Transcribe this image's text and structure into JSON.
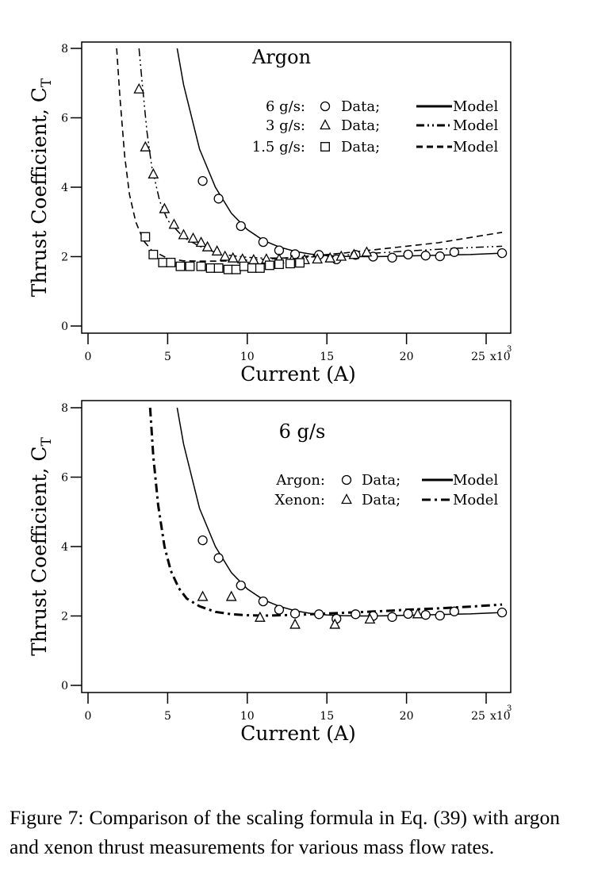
{
  "chart_data": [
    {
      "type": "scatter",
      "title": "Argon",
      "xlabel": "Current (A)",
      "ylabel": "Thrust Coefficient, C",
      "ylabel_sub": "T",
      "x_multiplier": "x10",
      "x_multiplier_exp": "3",
      "xlim": [
        0,
        26
      ],
      "ylim": [
        0,
        8
      ],
      "xticks": [
        0,
        5,
        10,
        15,
        20,
        25
      ],
      "xtick_labels": [
        "0",
        "5",
        "10",
        "15",
        "20",
        "25"
      ],
      "yticks": [
        0,
        2,
        4,
        6,
        8
      ],
      "ytick_labels": [
        "0",
        "2",
        "4",
        "6",
        "8"
      ],
      "grid": false,
      "legend_position": "top-right",
      "legend": [
        {
          "rate": "6 g/s:",
          "marker": "circle",
          "data_label": "Data;",
          "line": "solid",
          "model_label": "Model"
        },
        {
          "rate": "3 g/s:",
          "marker": "triangle",
          "data_label": "Data;",
          "line": "dash-dot-dot",
          "model_label": "Model"
        },
        {
          "rate": "1.5 g/s:",
          "marker": "square",
          "data_label": "Data;",
          "line": "dashed",
          "model_label": "Model"
        }
      ],
      "series": [
        {
          "marker": "circle",
          "x": [
            7.2,
            8.2,
            9.6,
            11.0,
            12.0,
            13.0,
            14.5,
            15.6,
            16.8,
            17.9,
            19.1,
            20.1,
            21.2,
            22.1,
            23.0,
            26.0
          ],
          "y": [
            4.18,
            3.67,
            2.88,
            2.42,
            2.18,
            2.07,
            2.05,
            1.92,
            2.05,
            2.0,
            1.97,
            2.06,
            2.03,
            2.01,
            2.13,
            2.1
          ]
        },
        {
          "marker": "triangle",
          "x": [
            3.2,
            3.6,
            4.1,
            4.8,
            5.4,
            6.0,
            6.6,
            7.1,
            7.5,
            8.1,
            8.6,
            9.1,
            9.7,
            10.4,
            11.2,
            12.0,
            12.8,
            13.6,
            14.4,
            15.2,
            15.9,
            16.7,
            17.5
          ],
          "y": [
            6.82,
            5.15,
            4.37,
            3.37,
            2.92,
            2.62,
            2.52,
            2.4,
            2.27,
            2.15,
            2.0,
            1.95,
            1.92,
            1.9,
            1.92,
            1.92,
            1.88,
            1.9,
            1.92,
            1.95,
            2.0,
            2.05,
            2.12
          ]
        },
        {
          "marker": "square",
          "x": [
            3.6,
            4.1,
            4.7,
            5.2,
            5.8,
            6.4,
            7.1,
            7.7,
            8.2,
            8.8,
            9.3,
            9.8,
            10.3,
            10.8,
            11.4,
            12.0,
            12.7,
            13.3
          ],
          "y": [
            2.57,
            2.06,
            1.83,
            1.83,
            1.72,
            1.72,
            1.72,
            1.67,
            1.67,
            1.63,
            1.63,
            1.72,
            1.67,
            1.67,
            1.75,
            1.78,
            1.8,
            1.82
          ]
        },
        {
          "line": "solid",
          "x": [
            5.6,
            6,
            7,
            8,
            9,
            10,
            11,
            12,
            13,
            14,
            15,
            16,
            17,
            18,
            19,
            20,
            21,
            22,
            23,
            24,
            25,
            26
          ],
          "y": [
            8.0,
            6.95,
            5.1,
            4.0,
            3.25,
            2.78,
            2.47,
            2.28,
            2.15,
            2.07,
            2.03,
            2.01,
            2.0,
            2.0,
            2.01,
            2.02,
            2.03,
            2.04,
            2.05,
            2.06,
            2.08,
            2.1
          ]
        },
        {
          "line": "dash-dot-dot",
          "x": [
            3.2,
            3.4,
            3.7,
            4.0,
            4.5,
            5,
            6,
            7,
            8,
            9,
            10,
            11,
            12,
            13,
            14,
            15,
            16,
            17,
            18,
            19,
            20,
            22,
            24,
            26
          ],
          "y": [
            8.0,
            7.0,
            5.6,
            4.6,
            3.6,
            3.05,
            2.55,
            2.3,
            2.12,
            2.03,
            1.98,
            1.96,
            1.96,
            1.97,
            1.99,
            2.01,
            2.04,
            2.07,
            2.1,
            2.13,
            2.16,
            2.21,
            2.26,
            2.3
          ]
        },
        {
          "line": "dashed",
          "x": [
            1.8,
            2.0,
            2.3,
            2.6,
            3.0,
            3.5,
            4,
            5,
            6,
            7,
            8,
            9,
            10,
            11,
            12,
            13,
            14,
            15,
            16,
            17,
            18,
            19,
            20,
            22,
            24,
            26
          ],
          "y": [
            8.0,
            6.6,
            4.9,
            3.8,
            3.0,
            2.45,
            2.18,
            1.95,
            1.88,
            1.87,
            1.87,
            1.88,
            1.9,
            1.92,
            1.95,
            1.98,
            2.02,
            2.06,
            2.1,
            2.15,
            2.2,
            2.25,
            2.3,
            2.4,
            2.55,
            2.7
          ]
        }
      ]
    },
    {
      "type": "scatter",
      "title": "6 g/s",
      "xlabel": "Current (A)",
      "ylabel": "Thrust Coefficient, C",
      "ylabel_sub": "T",
      "x_multiplier": "x10",
      "x_multiplier_exp": "3",
      "xlim": [
        0,
        26
      ],
      "ylim": [
        0,
        8
      ],
      "xticks": [
        0,
        5,
        10,
        15,
        20,
        25
      ],
      "xtick_labels": [
        "0",
        "5",
        "10",
        "15",
        "20",
        "25"
      ],
      "yticks": [
        0,
        2,
        4,
        6,
        8
      ],
      "ytick_labels": [
        "0",
        "2",
        "4",
        "6",
        "8"
      ],
      "grid": false,
      "legend_position": "top-right",
      "legend": [
        {
          "rate": "Argon:",
          "marker": "circle",
          "data_label": "Data;",
          "line": "solid",
          "model_label": "Model"
        },
        {
          "rate": "Xenon:",
          "marker": "triangle",
          "data_label": "Data;",
          "line": "dash-dot",
          "model_label": "Model"
        }
      ],
      "series": [
        {
          "marker": "circle",
          "x": [
            7.2,
            8.2,
            9.6,
            11.0,
            12.0,
            13.0,
            14.5,
            15.6,
            16.8,
            17.9,
            19.1,
            20.1,
            21.2,
            22.1,
            23.0,
            26.0
          ],
          "y": [
            4.18,
            3.67,
            2.88,
            2.42,
            2.18,
            2.07,
            2.05,
            1.92,
            2.05,
            2.0,
            1.97,
            2.06,
            2.03,
            2.01,
            2.13,
            2.1
          ]
        },
        {
          "marker": "triangle",
          "x": [
            7.2,
            9.0,
            10.8,
            13.0,
            15.5,
            17.7,
            20.7
          ],
          "y": [
            2.55,
            2.55,
            1.95,
            1.75,
            1.75,
            1.9,
            2.05
          ]
        },
        {
          "line": "solid",
          "x": [
            5.6,
            6,
            7,
            8,
            9,
            10,
            11,
            12,
            13,
            14,
            15,
            16,
            17,
            18,
            19,
            20,
            21,
            22,
            23,
            24,
            25,
            26
          ],
          "y": [
            8.0,
            6.95,
            5.1,
            4.0,
            3.25,
            2.78,
            2.47,
            2.28,
            2.15,
            2.07,
            2.03,
            2.01,
            2.0,
            2.0,
            2.01,
            2.02,
            2.03,
            2.04,
            2.05,
            2.06,
            2.08,
            2.1
          ]
        },
        {
          "line": "dash-dot",
          "x": [
            3.9,
            4.1,
            4.4,
            4.8,
            5.2,
            5.7,
            6.2,
            7,
            8,
            9,
            10,
            11,
            12,
            13,
            14,
            15,
            16,
            17,
            18,
            19,
            20,
            22,
            24,
            26
          ],
          "y": [
            8.0,
            6.6,
            5.2,
            4.0,
            3.3,
            2.8,
            2.5,
            2.28,
            2.12,
            2.05,
            2.02,
            2.01,
            2.02,
            2.03,
            2.05,
            2.07,
            2.09,
            2.11,
            2.13,
            2.15,
            2.18,
            2.22,
            2.27,
            2.33
          ]
        }
      ]
    }
  ],
  "caption": {
    "lines": [
      "Figure 7:  Comparison of the scaling formula in",
      "Eq. (39) with argon and xenon thrust measurements",
      "for various mass flow rates."
    ]
  }
}
